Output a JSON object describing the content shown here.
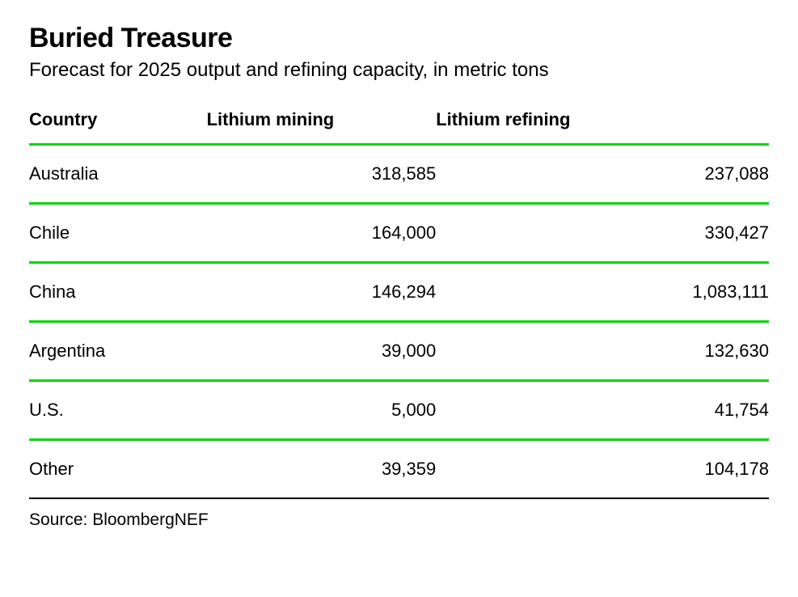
{
  "title": "Buried Treasure",
  "subtitle": "Forecast for 2025 output and refining capacity, in metric tons",
  "table": {
    "type": "table",
    "columns": [
      "Country",
      "Lithium mining",
      "Lithium refining"
    ],
    "column_widths_pct": [
      24,
      31,
      45
    ],
    "column_align": [
      "left",
      "right",
      "right"
    ],
    "header_fontsize": 22,
    "header_fontweight": 700,
    "cell_fontsize": 22,
    "row_border_color": "#00d600",
    "row_border_width": 3,
    "final_border_color": "#000000",
    "final_border_width": 2,
    "rows": [
      {
        "country": "Australia",
        "mining": "318,585",
        "refining": "237,088"
      },
      {
        "country": "Chile",
        "mining": "164,000",
        "refining": "330,427"
      },
      {
        "country": "China",
        "mining": "146,294",
        "refining": "1,083,111"
      },
      {
        "country": "Argentina",
        "mining": "39,000",
        "refining": "132,630"
      },
      {
        "country": "U.S.",
        "mining": "5,000",
        "refining": "41,754"
      },
      {
        "country": "Other",
        "mining": "39,359",
        "refining": "104,178"
      }
    ]
  },
  "source": "Source: BloombergNEF",
  "colors": {
    "background": "#ffffff",
    "text": "#000000",
    "accent_green": "#00d600"
  },
  "typography": {
    "title_fontsize": 34,
    "title_fontweight": 800,
    "subtitle_fontsize": 24,
    "source_fontsize": 21
  }
}
